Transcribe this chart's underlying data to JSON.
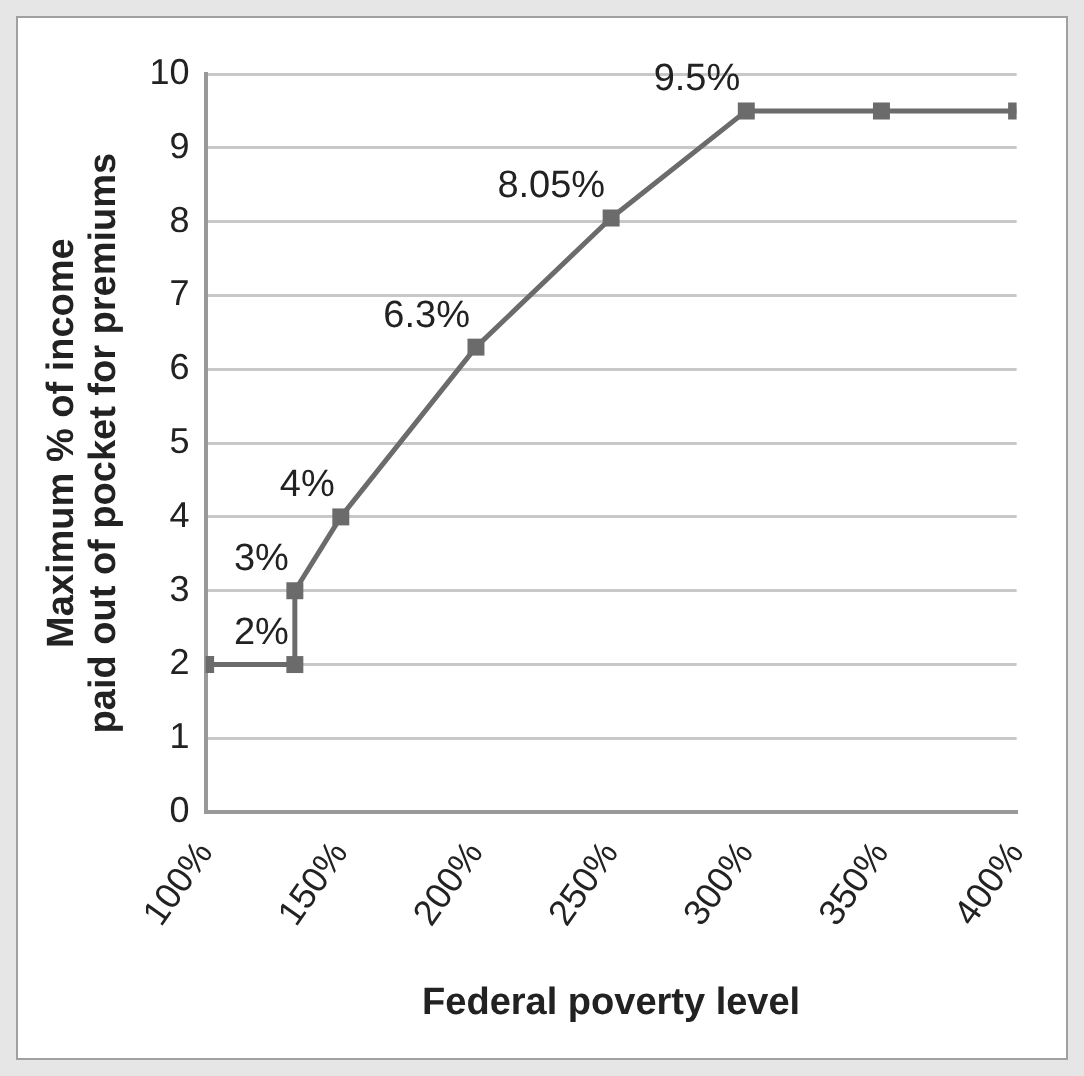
{
  "chart_data": {
    "type": "line",
    "xlabel": "Federal poverty level",
    "ylabel": "Maximum % of income\npaid out of pocket for premiums",
    "x": [
      100,
      133,
      133,
      150,
      200,
      250,
      300,
      350,
      400
    ],
    "series": [
      {
        "color": "#6b6b6b",
        "values": [
          2,
          2,
          3,
          4,
          6.3,
          8.05,
          9.5,
          9.5,
          9.5
        ],
        "value_labels": [
          null,
          "2%",
          "3%",
          "4%",
          "6.3%",
          "8.05%",
          "9.5%",
          null,
          null
        ]
      }
    ],
    "xlim": [
      100,
      400
    ],
    "xticks": [
      {
        "value": 100,
        "label": "100%"
      },
      {
        "value": 150,
        "label": "150%"
      },
      {
        "value": 200,
        "label": "200%"
      },
      {
        "value": 250,
        "label": "250%"
      },
      {
        "value": 300,
        "label": "300%"
      },
      {
        "value": 350,
        "label": "350%"
      },
      {
        "value": 400,
        "label": "400%"
      }
    ],
    "ylim": [
      0,
      10
    ],
    "yticks": [
      0,
      1,
      2,
      3,
      4,
      5,
      6,
      7,
      8,
      9,
      10
    ],
    "grid": "y",
    "legend": false,
    "marker": "square",
    "line_style": "solid"
  }
}
